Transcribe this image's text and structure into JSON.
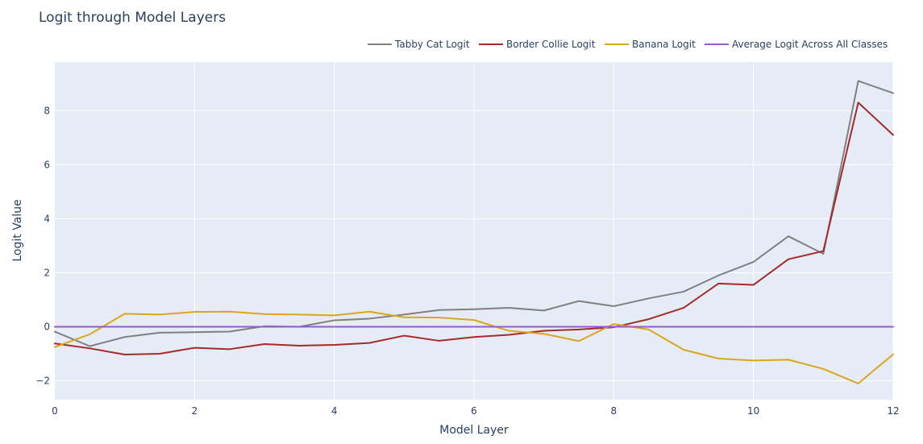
{
  "chart_data": {
    "type": "line",
    "title": "Logit through Model Layers",
    "xlabel": "Model Layer",
    "ylabel": "Logit Value",
    "xlim": [
      0,
      12
    ],
    "ylim": [
      -2.7,
      9.8
    ],
    "grid": true,
    "legend_position": "top-right",
    "x_ticks": [
      0,
      2,
      4,
      6,
      8,
      10,
      12
    ],
    "y_ticks": [
      -2,
      0,
      2,
      4,
      6,
      8
    ],
    "x_tick_labels": [
      "0",
      "2",
      "4",
      "6",
      "8",
      "10",
      "12"
    ],
    "y_tick_labels": [
      "−2",
      "0",
      "2",
      "4",
      "6",
      "8"
    ],
    "x": [
      0,
      0.5,
      1,
      1.5,
      2,
      2.5,
      3,
      3.5,
      4,
      4.5,
      5,
      5.5,
      6,
      6.5,
      7,
      7.5,
      8,
      8.5,
      9,
      9.5,
      10,
      10.5,
      11,
      11.5,
      12
    ],
    "series": [
      {
        "name": "Tabby Cat Logit",
        "color": "#808080",
        "values": [
          -0.18,
          -0.72,
          -0.38,
          -0.22,
          -0.2,
          -0.18,
          0.02,
          0.0,
          0.24,
          0.3,
          0.45,
          0.62,
          0.65,
          0.7,
          0.6,
          0.95,
          0.76,
          1.05,
          1.3,
          1.9,
          2.4,
          3.35,
          2.7,
          9.1,
          8.65
        ]
      },
      {
        "name": "Border Collie Logit",
        "color": "#a52a2a",
        "values": [
          -0.62,
          -0.8,
          -1.03,
          -1.0,
          -0.78,
          -0.83,
          -0.64,
          -0.7,
          -0.67,
          -0.6,
          -0.33,
          -0.52,
          -0.38,
          -0.3,
          -0.15,
          -0.1,
          -0.02,
          0.28,
          0.7,
          1.6,
          1.55,
          2.5,
          2.8,
          8.3,
          7.1
        ]
      },
      {
        "name": "Banana Logit",
        "color": "#daa520",
        "values": [
          -0.75,
          -0.28,
          0.48,
          0.45,
          0.55,
          0.56,
          0.47,
          0.45,
          0.42,
          0.56,
          0.35,
          0.34,
          0.25,
          -0.15,
          -0.26,
          -0.53,
          0.1,
          -0.1,
          -0.85,
          -1.18,
          -1.25,
          -1.22,
          -1.56,
          -2.1,
          -1.02
        ]
      },
      {
        "name": "Average Logit Across All Classes",
        "color": "#9b59d0",
        "values": [
          0,
          0,
          0,
          0,
          0,
          0,
          0,
          0,
          0,
          0,
          0,
          0,
          0,
          0,
          0,
          0,
          0,
          0,
          0,
          0,
          0,
          0,
          0,
          0,
          0
        ]
      }
    ]
  },
  "colors": {
    "plot_background": "#e5ecf6",
    "grid": "#ffffff",
    "text": "#2a3f5f"
  }
}
